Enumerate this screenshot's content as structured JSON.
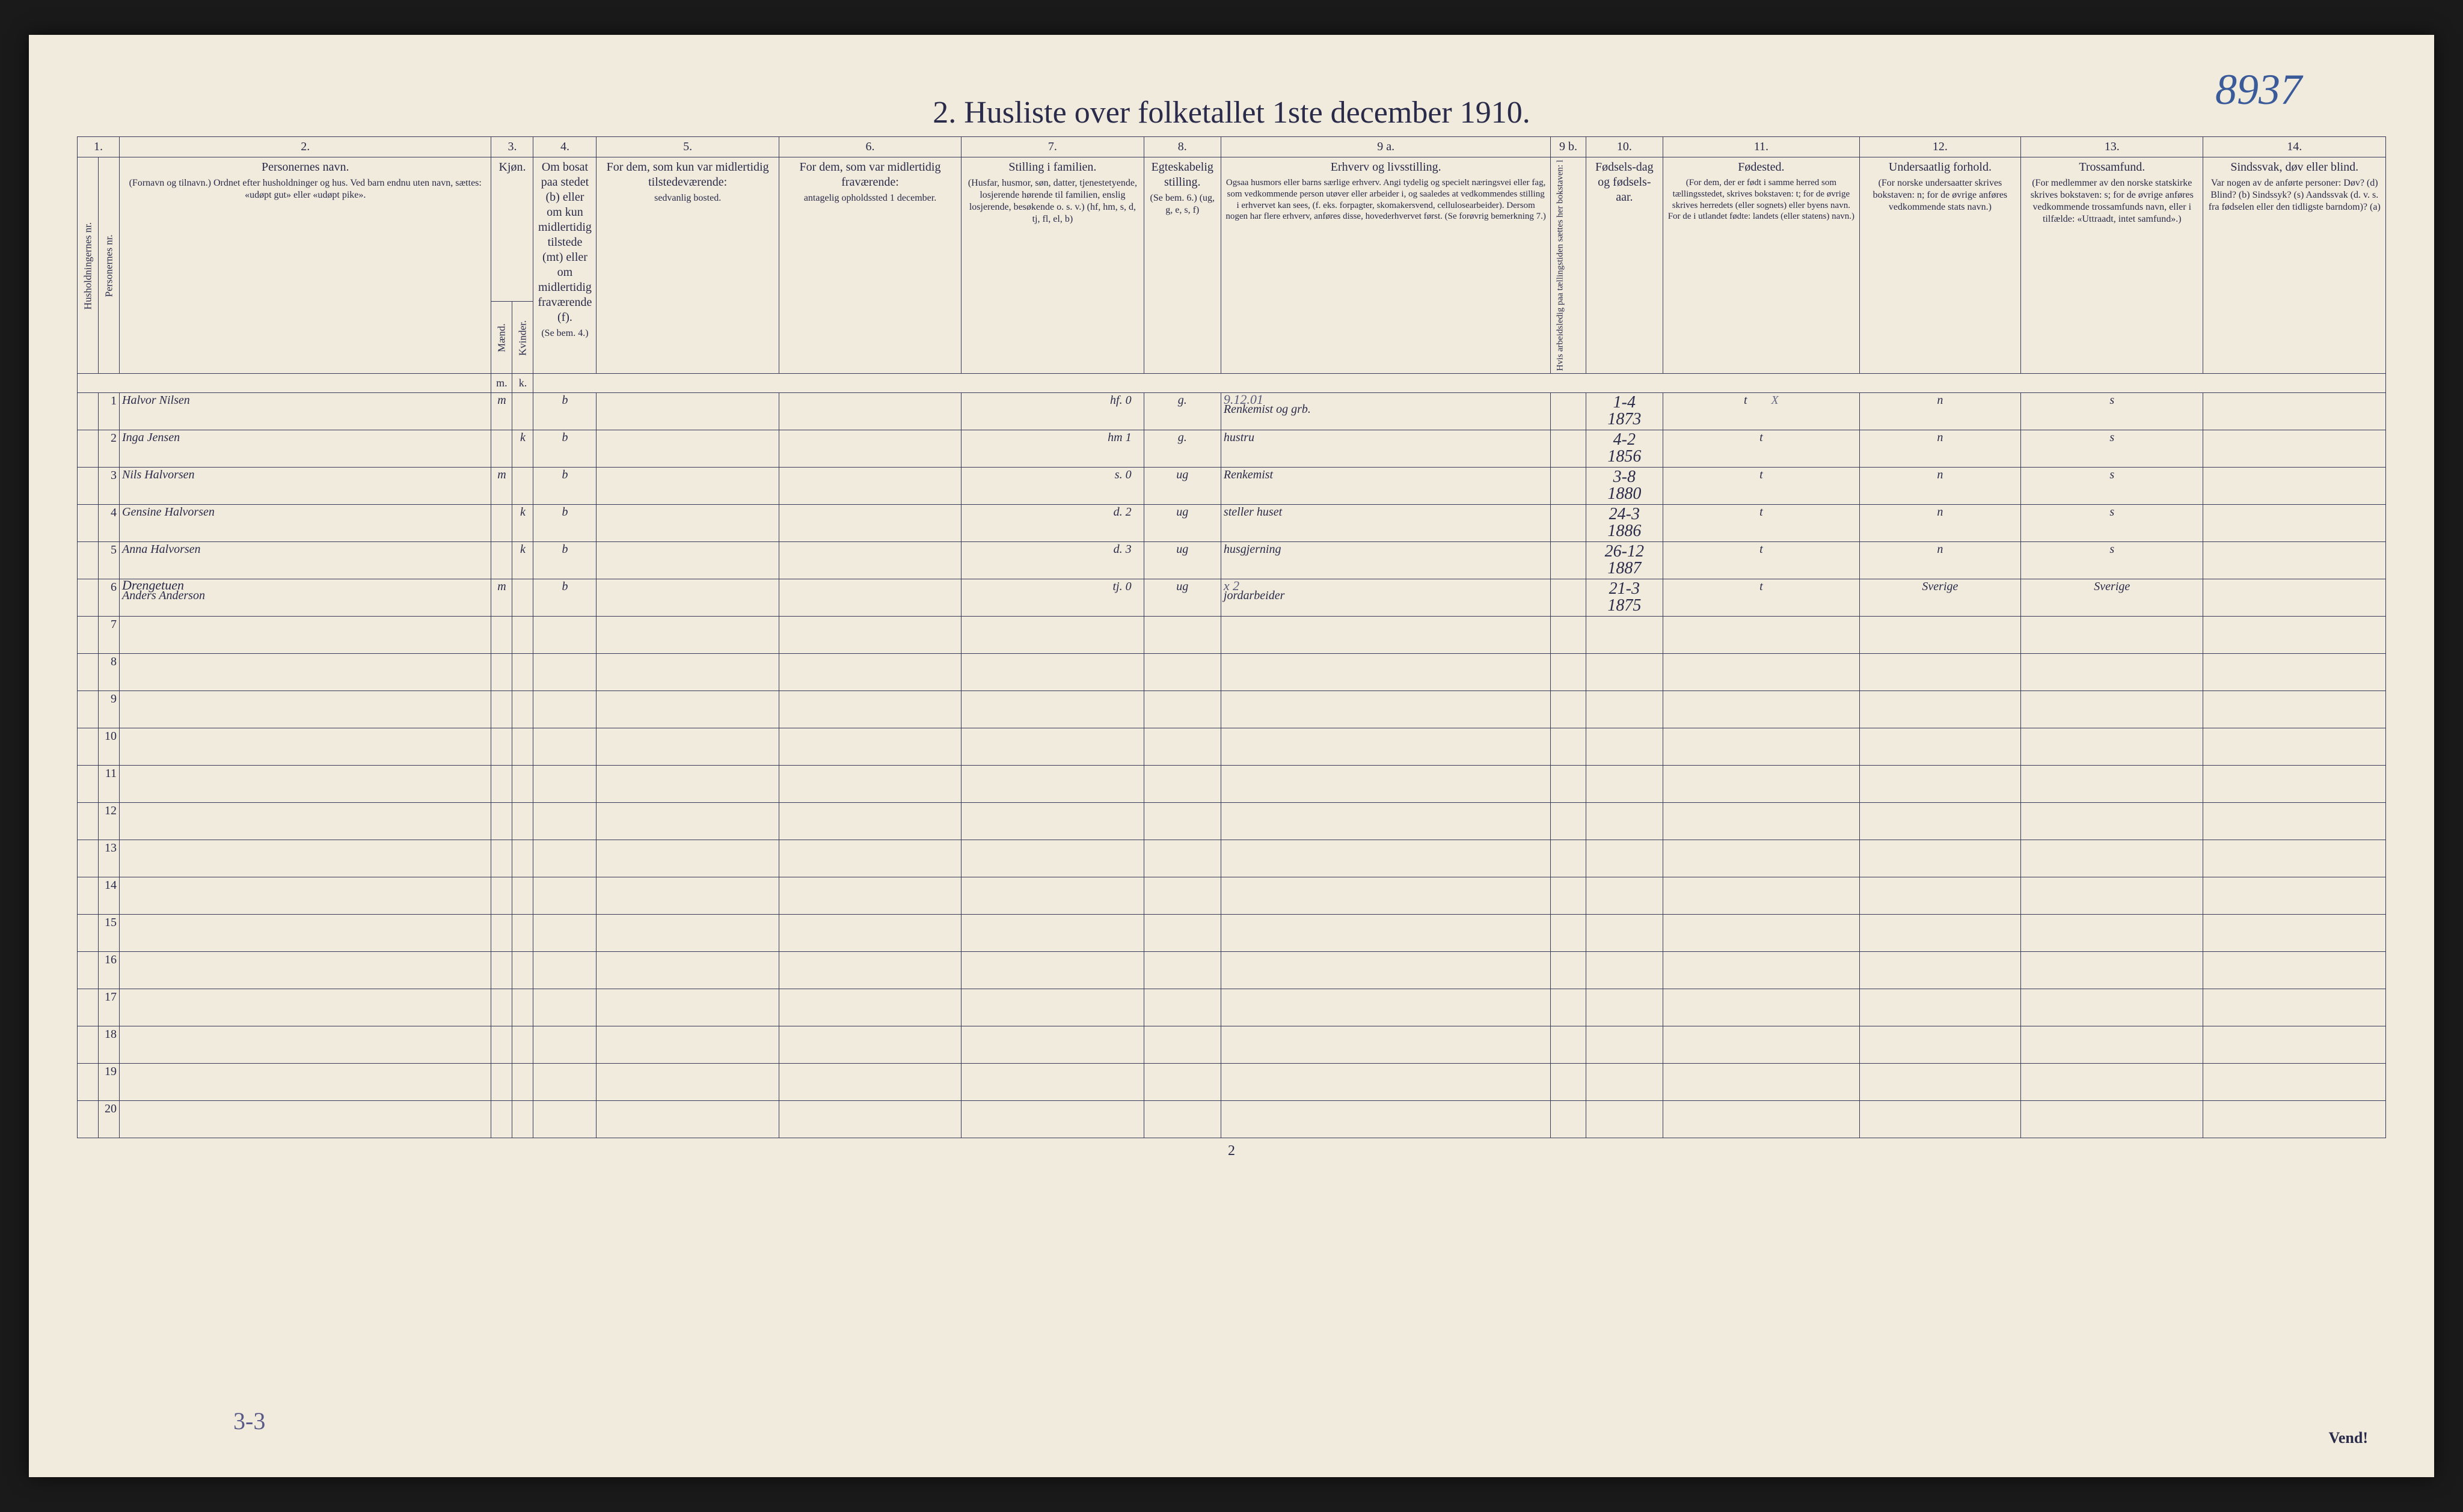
{
  "annotations": {
    "top_right": "8937",
    "bottom_left": "3-3"
  },
  "title": "2.  Husliste over folketallet 1ste december 1910.",
  "page_number": "2",
  "footer_right": "Vend!",
  "column_numbers": [
    "1.",
    "2.",
    "3.",
    "4.",
    "5.",
    "6.",
    "7.",
    "8.",
    "9 a.",
    "9 b.",
    "10.",
    "11.",
    "12.",
    "13.",
    "14."
  ],
  "headers": {
    "c1": "Husholdningernes nr.",
    "c1b": "Personernes nr.",
    "c2": "Personernes navn.",
    "c2_sub": "(Fornavn og tilnavn.)\nOrdnet efter husholdninger og hus.\nVed barn endnu uten navn, sættes: «udøpt gut» eller «udøpt pike».",
    "c3": "Kjøn.",
    "c3_m": "Mænd.",
    "c3_k": "Kvinder.",
    "c4": "Om bosat paa stedet (b) eller om kun midlertidig tilstede (mt) eller om midlertidig fraværende (f).",
    "c4_sub": "(Se bem. 4.)",
    "c5": "For dem, som kun var midlertidig tilstedeværende:",
    "c5_sub": "sedvanlig bosted.",
    "c6": "For dem, som var midlertidig fraværende:",
    "c6_sub": "antagelig opholdssted 1 december.",
    "c7": "Stilling i familien.",
    "c7_sub": "(Husfar, husmor, søn, datter, tjenestetyende, losjerende hørende til familien, enslig losjerende, besøkende o. s. v.)\n(hf, hm, s, d, tj, fl, el, b)",
    "c8": "Egteskabelig stilling.",
    "c8_sub": "(Se bem. 6.)\n(ug, g, e, s, f)",
    "c9a": "Erhverv og livsstilling.",
    "c9a_sub": "Ogsaa husmors eller barns særlige erhverv. Angi tydelig og specielt næringsvei eller fag, som vedkommende person utøver eller arbeider i, og saaledes at vedkommendes stilling i erhvervet kan sees, (f. eks. forpagter, skomakersvend, cellulosearbeider). Dersom nogen har flere erhverv, anføres disse, hovederhvervet først.\n(Se forøvrig bemerkning 7.)",
    "c9b": "Hvis arbeidsledig paa tællingstiden sættes her bokstaven: l",
    "c10": "Fødsels-dag og fødsels-aar.",
    "c11": "Fødested.",
    "c11_sub": "(For dem, der er født i samme herred som tællingsstedet, skrives bokstaven: t; for de øvrige skrives herredets (eller sognets) eller byens navn. For de i utlandet fødte: landets (eller statens) navn.)",
    "c12": "Undersaatlig forhold.",
    "c12_sub": "(For norske undersaatter skrives bokstaven: n; for de øvrige anføres vedkommende stats navn.)",
    "c13": "Trossamfund.",
    "c13_sub": "(For medlemmer av den norske statskirke skrives bokstaven: s; for de øvrige anføres vedkommende trossamfunds navn, eller i tilfælde: «Uttraadt, intet samfund».)",
    "c14": "Sindssvak, døv eller blind.",
    "c14_sub": "Var nogen av de anførte personer:\nDøv? (d)\nBlind? (b)\nSindssyk? (s)\nAandssvak (d. v. s. fra fødselen eller den tidligste barndom)? (a)"
  },
  "col_widths": {
    "c1": 30,
    "c1b": 30,
    "c2": 530,
    "cm": 30,
    "ck": 30,
    "c4": 90,
    "c5": 260,
    "c6": 260,
    "c7": 260,
    "c8": 110,
    "c9a": 470,
    "c9b": 50,
    "c10": 110,
    "c11": 280,
    "c12": 230,
    "c13": 260,
    "c14": 260
  },
  "rows": [
    {
      "n": "1",
      "name": "Halvor Nilsen",
      "m": "m",
      "k": "",
      "b": "b",
      "c7": "hf.   0",
      "c8": "g.",
      "c9_note": "9.12.01",
      "c9": "Renkemist og grb.",
      "c10": "1-4\n1873",
      "c11": "t",
      "c11x": "X",
      "c12": "n",
      "c13": "s"
    },
    {
      "n": "2",
      "name": "Inga Jensen",
      "m": "",
      "k": "k",
      "b": "b",
      "c7": "hm   1",
      "c8": "g.",
      "c9": "hustru",
      "c10": "4-2\n1856",
      "c11": "t",
      "c12": "n",
      "c13": "s"
    },
    {
      "n": "3",
      "name": "Nils Halvorsen",
      "m": "m",
      "k": "",
      "b": "b",
      "c7": "s.   0",
      "c8": "ug",
      "c9": "Renkemist",
      "c10": "3-8\n1880",
      "c11": "t",
      "c12": "n",
      "c13": "s"
    },
    {
      "n": "4",
      "name": "Gensine Halvorsen",
      "m": "",
      "k": "k",
      "b": "b",
      "c7": "d.   2",
      "c8": "ug",
      "c9": "steller huset",
      "c10": "24-3\n1886",
      "c11": "t",
      "c12": "n",
      "c13": "s"
    },
    {
      "n": "5",
      "name": "Anna Halvorsen",
      "m": "",
      "k": "k",
      "b": "b",
      "c7": "d.   3",
      "c8": "ug",
      "c9": "husgjerning",
      "c10": "26-12\n1887",
      "c11": "t",
      "c12": "n",
      "c13": "s"
    },
    {
      "n": "6",
      "name_prefix": "Drengetuen",
      "name": "Anders Anderson",
      "m": "m",
      "k": "",
      "b": "b",
      "c7": "tj.   0",
      "c8": "ug",
      "c9_note": "x 2",
      "c9": "jordarbeider",
      "c10": "21-3\n1875",
      "c11": "t",
      "c12": "Sverige",
      "c13": "Sverige"
    }
  ],
  "empty_rows": [
    "7",
    "8",
    "9",
    "10",
    "11",
    "12",
    "13",
    "14",
    "15",
    "16",
    "17",
    "18",
    "19",
    "20"
  ],
  "colors": {
    "paper": "#f0ebdc",
    "ink_print": "#2a2a4a",
    "ink_hand": "#3a3a3a",
    "pencil_blue": "#3a5a9a",
    "pencil_gray": "#6a6a8a",
    "border": "#3a3a5a",
    "background": "#1a1a1a"
  },
  "typography": {
    "title_size_pt": 52,
    "header_size_pt": 20,
    "handwriting_size_pt": 42,
    "handwriting_family": "cursive"
  }
}
